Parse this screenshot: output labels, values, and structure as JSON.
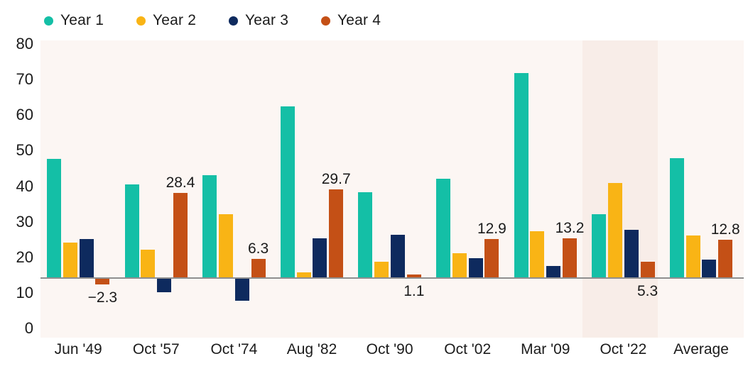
{
  "legend": {
    "items": [
      {
        "label": "Year 1",
        "color": "#14BFA6"
      },
      {
        "label": "Year 2",
        "color": "#F9B415"
      },
      {
        "label": "Year 3",
        "color": "#0E2A5E"
      },
      {
        "label": "Year 4",
        "color": "#C45016"
      }
    ]
  },
  "chart_data": {
    "type": "bar",
    "title": "",
    "xlabel": "",
    "ylabel": "",
    "categories": [
      "Jun '49",
      "Oct '57",
      "Oct '74",
      "Aug '82",
      "Oct '90",
      "Oct '02",
      "Mar '09",
      "Oct '22",
      "Average"
    ],
    "series": [
      {
        "name": "Year 1",
        "color": "#14BFA6",
        "values": [
          40.0,
          31.3,
          34.5,
          57.5,
          28.7,
          33.3,
          68.8,
          21.3,
          40.1
        ]
      },
      {
        "name": "Year 2",
        "color": "#F9B415",
        "values": [
          11.7,
          9.5,
          21.3,
          1.8,
          5.3,
          8.1,
          15.5,
          31.9,
          14.1
        ]
      },
      {
        "name": "Year 3",
        "color": "#0E2A5E",
        "values": [
          12.9,
          -4.9,
          -7.8,
          13.1,
          14.5,
          6.5,
          4.0,
          16.0,
          6.0
        ]
      },
      {
        "name": "Year 4",
        "color": "#C45016",
        "values": [
          -2.3,
          28.4,
          6.3,
          29.7,
          1.1,
          12.9,
          13.2,
          5.3,
          12.8
        ],
        "data_labels": [
          "−2.3",
          "28.4",
          "6.3",
          "29.7",
          "1.1",
          "12.9",
          "13.2",
          "5.3",
          "12.8"
        ],
        "label_below": [
          true,
          false,
          false,
          false,
          true,
          false,
          false,
          true,
          false
        ]
      }
    ],
    "y_axis": {
      "ticks": [
        80,
        70,
        60,
        50,
        40,
        30,
        20,
        10,
        0
      ],
      "ylim": [
        0,
        80
      ]
    },
    "highlight_category": "Oct '22",
    "grid": false,
    "legend_position": "top-left",
    "colors": {
      "plot_background": "#FCF6F3",
      "highlight_band": "#F8EDE8",
      "baseline": "#8F8F8F",
      "text": "#1B1B1B"
    }
  }
}
